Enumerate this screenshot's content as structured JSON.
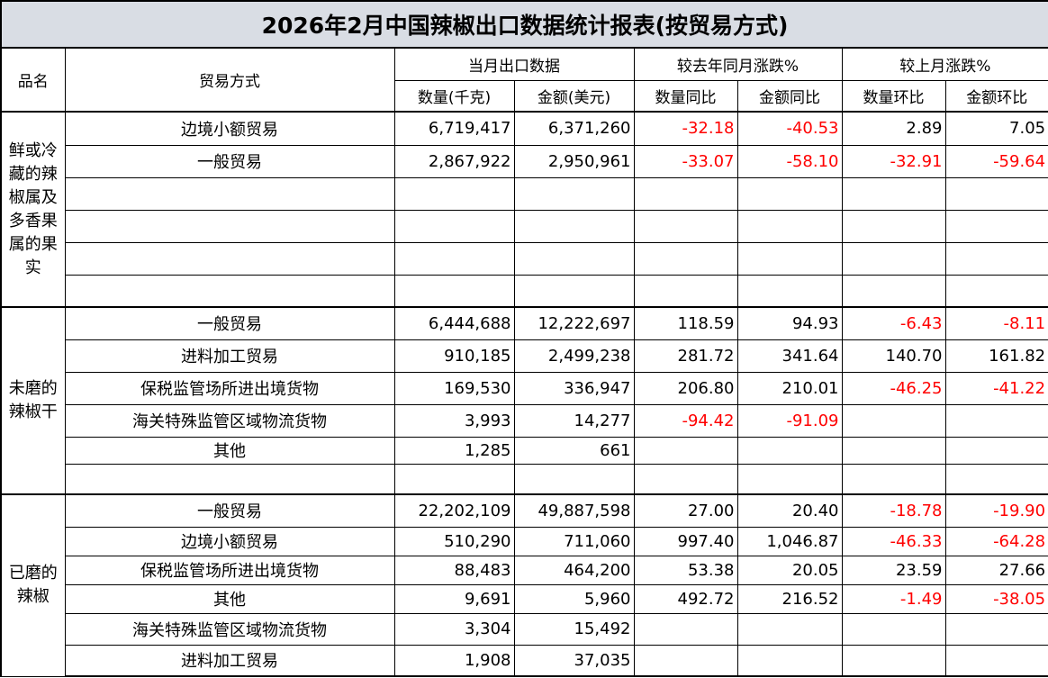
{
  "title": "2026年2月中国辣椒出口数据统计报表(按贸易方式)",
  "negative_color": "#ff0000",
  "header_bg": "#d9dde4",
  "headers": {
    "product": "品名",
    "trade_mode": "贸易方式",
    "current_month": "当月出口数据",
    "yoy": "较去年同月涨跌%",
    "mom": "较上月涨跌%",
    "sub": [
      "数量(千克)",
      "金额(美元)",
      "数量同比",
      "金额同比",
      "数量环比",
      "金额环比"
    ]
  },
  "sections": [
    {
      "product": "鲜或冷藏的辣椒属及多香果属的果实",
      "rows": [
        {
          "mode": "边境小额贸易",
          "values": [
            "6,719,417",
            "6,371,260",
            "-32.18",
            "-40.53",
            "2.89",
            "7.05"
          ]
        },
        {
          "mode": "一般贸易",
          "values": [
            "2,867,922",
            "2,950,961",
            "-33.07",
            "-58.10",
            "-32.91",
            "-59.64"
          ]
        },
        {
          "mode": "",
          "values": [
            "",
            "",
            "",
            "",
            "",
            ""
          ]
        },
        {
          "mode": "",
          "values": [
            "",
            "",
            "",
            "",
            "",
            ""
          ]
        },
        {
          "mode": "",
          "values": [
            "",
            "",
            "",
            "",
            "",
            ""
          ]
        },
        {
          "mode": "",
          "values": [
            "",
            "",
            "",
            "",
            "",
            ""
          ]
        }
      ]
    },
    {
      "product": "未磨的辣椒干",
      "rows": [
        {
          "mode": "一般贸易",
          "values": [
            "6,444,688",
            "12,222,697",
            "118.59",
            "94.93",
            "-6.43",
            "-8.11"
          ]
        },
        {
          "mode": "进料加工贸易",
          "values": [
            "910,185",
            "2,499,238",
            "281.72",
            "341.64",
            "140.70",
            "161.82"
          ]
        },
        {
          "mode": "保税监管场所进出境货物",
          "values": [
            "169,530",
            "336,947",
            "206.80",
            "210.01",
            "-46.25",
            "-41.22"
          ]
        },
        {
          "mode": "海关特殊监管区域物流货物",
          "values": [
            "3,993",
            "14,277",
            "-94.42",
            "-91.09",
            "",
            ""
          ]
        },
        {
          "mode": "其他",
          "values": [
            "1,285",
            "661",
            "",
            "",
            "",
            ""
          ]
        },
        {
          "mode": "",
          "values": [
            "",
            "",
            "",
            "",
            "",
            ""
          ]
        }
      ]
    },
    {
      "product": "已磨的辣椒",
      "rows": [
        {
          "mode": "一般贸易",
          "values": [
            "22,202,109",
            "49,887,598",
            "27.00",
            "20.40",
            "-18.78",
            "-19.90"
          ]
        },
        {
          "mode": "边境小额贸易",
          "values": [
            "510,290",
            "711,060",
            "997.40",
            "1,046.87",
            "-46.33",
            "-64.28"
          ]
        },
        {
          "mode": "保税监管场所进出境货物",
          "values": [
            "88,483",
            "464,200",
            "53.38",
            "20.05",
            "23.59",
            "27.66"
          ]
        },
        {
          "mode": "其他",
          "values": [
            "9,691",
            "5,960",
            "492.72",
            "216.52",
            "-1.49",
            "-38.05"
          ]
        },
        {
          "mode": "海关特殊监管区域物流货物",
          "values": [
            "3,304",
            "15,492",
            "",
            "",
            "",
            ""
          ]
        },
        {
          "mode": "进料加工贸易",
          "values": [
            "1,908",
            "37,035",
            "",
            "",
            "",
            ""
          ]
        }
      ]
    }
  ]
}
